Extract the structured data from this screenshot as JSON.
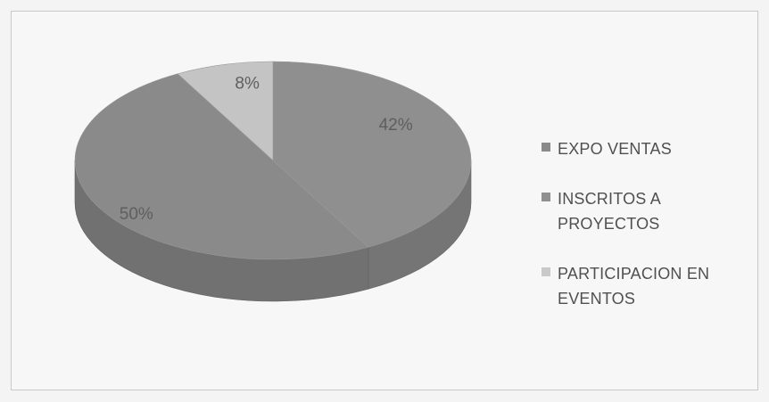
{
  "chart_data": {
    "type": "pie",
    "title": "",
    "categories": [
      "EXPO VENTAS",
      "INSCRITOS A PROYECTOS",
      "PARTICIPACION EN EVENTOS"
    ],
    "values": [
      42,
      50,
      8
    ],
    "value_labels": [
      "42%",
      "50%",
      "8%"
    ],
    "colors": [
      "#8f8f8f",
      "#8a8a8a",
      "#c4c4c4"
    ],
    "legend": {
      "placement": "right",
      "entries": [
        {
          "lines": [
            "EXPO VENTAS"
          ],
          "color": "#8a8a8a"
        },
        {
          "lines": [
            "INSCRITOS A",
            "PROYECTOS"
          ],
          "color": "#909090"
        },
        {
          "lines": [
            "PARTICIPACION EN",
            "EVENTOS"
          ],
          "color": "#c9c9c9"
        }
      ]
    },
    "style": "3d"
  }
}
